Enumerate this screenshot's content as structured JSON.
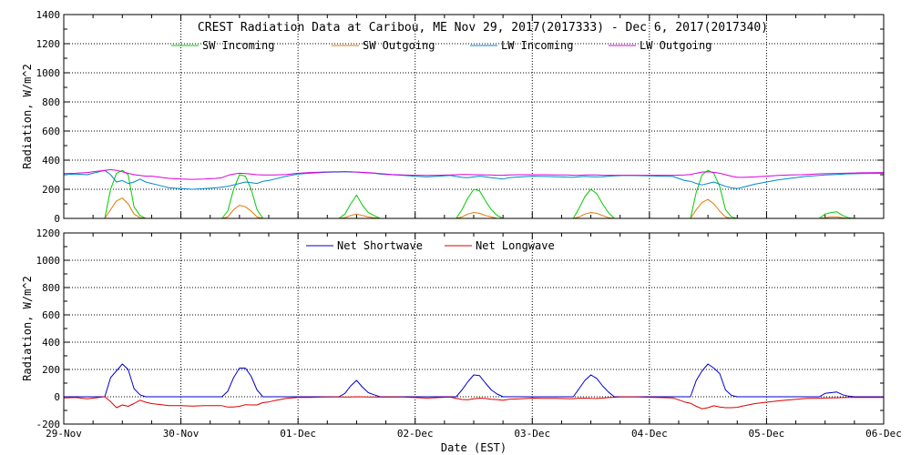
{
  "chart_data": [
    {
      "type": "line",
      "title": "CREST Radiation Data at Caribou, ME   Nov 29, 2017(2017333) - Dec  6, 2017(2017340)",
      "xlabel": "",
      "ylabel": "Radiation, W/m^2",
      "xlim": [
        "2017-11-29",
        "2017-12-06"
      ],
      "ylim": [
        0,
        1400
      ],
      "yticks": [
        0,
        200,
        400,
        600,
        800,
        1000,
        1200,
        1400
      ],
      "xtick_labels": [],
      "grid": true,
      "legend_position": "top",
      "x": [
        0.0,
        0.1,
        0.2,
        0.25,
        0.3,
        0.35,
        0.4,
        0.45,
        0.5,
        0.55,
        0.6,
        0.65,
        0.7,
        0.75,
        0.8,
        0.85,
        0.9,
        1.0,
        1.1,
        1.2,
        1.3,
        1.35,
        1.4,
        1.45,
        1.5,
        1.55,
        1.6,
        1.65,
        1.7,
        1.75,
        1.8,
        1.9,
        2.0,
        2.1,
        2.2,
        2.3,
        2.35,
        2.4,
        2.45,
        2.5,
        2.55,
        2.6,
        2.65,
        2.7,
        2.75,
        2.8,
        2.9,
        3.0,
        3.1,
        3.2,
        3.3,
        3.35,
        3.4,
        3.45,
        3.5,
        3.55,
        3.6,
        3.65,
        3.7,
        3.75,
        3.8,
        3.9,
        4.0,
        4.1,
        4.2,
        4.3,
        4.35,
        4.4,
        4.45,
        4.5,
        4.55,
        4.6,
        4.65,
        4.7,
        4.75,
        4.8,
        4.9,
        5.0,
        5.1,
        5.2,
        5.3,
        5.35,
        5.4,
        5.45,
        5.5,
        5.55,
        5.6,
        5.65,
        5.7,
        5.75,
        5.8,
        5.9,
        6.0,
        6.1,
        6.2,
        6.3,
        6.35,
        6.4,
        6.45,
        6.5,
        6.55,
        6.6,
        6.65,
        6.7,
        6.75,
        6.8,
        6.9,
        7.0
      ],
      "series": [
        {
          "name": "SW Incoming",
          "color": "#00cc00",
          "values": [
            0,
            0,
            0,
            0,
            0,
            0,
            200,
            310,
            330,
            300,
            80,
            20,
            0,
            0,
            0,
            0,
            0,
            0,
            0,
            0,
            0,
            0,
            50,
            200,
            300,
            290,
            200,
            60,
            0,
            0,
            0,
            0,
            0,
            0,
            0,
            0,
            0,
            30,
            100,
            160,
            90,
            40,
            20,
            0,
            0,
            0,
            0,
            0,
            0,
            0,
            0,
            0,
            60,
            140,
            200,
            190,
            120,
            60,
            20,
            0,
            0,
            0,
            0,
            0,
            0,
            0,
            0,
            70,
            150,
            200,
            170,
            100,
            40,
            0,
            0,
            0,
            0,
            0,
            0,
            0,
            0,
            0,
            180,
            300,
            330,
            310,
            220,
            60,
            10,
            0,
            0,
            0,
            0,
            0,
            0,
            0,
            0,
            0,
            0,
            30,
            40,
            45,
            20,
            5,
            0,
            0,
            0,
            0
          ]
        },
        {
          "name": "SW Outgoing",
          "color": "#e07800",
          "values": [
            0,
            0,
            0,
            0,
            0,
            0,
            60,
            120,
            140,
            100,
            30,
            5,
            0,
            0,
            0,
            0,
            0,
            0,
            0,
            0,
            0,
            0,
            10,
            60,
            90,
            80,
            50,
            10,
            0,
            0,
            0,
            0,
            0,
            0,
            0,
            0,
            0,
            5,
            20,
            30,
            20,
            10,
            5,
            0,
            0,
            0,
            0,
            0,
            0,
            0,
            0,
            0,
            10,
            30,
            40,
            35,
            20,
            10,
            0,
            0,
            0,
            0,
            0,
            0,
            0,
            0,
            0,
            10,
            30,
            40,
            35,
            20,
            5,
            0,
            0,
            0,
            0,
            0,
            0,
            0,
            0,
            0,
            60,
            110,
            130,
            100,
            50,
            10,
            0,
            0,
            0,
            0,
            0,
            0,
            0,
            0,
            0,
            0,
            0,
            5,
            10,
            10,
            5,
            0,
            0,
            0,
            0,
            0
          ]
        },
        {
          "name": "LW Incoming",
          "color": "#0088cc",
          "values": [
            300,
            305,
            300,
            310,
            320,
            330,
            300,
            250,
            260,
            240,
            250,
            270,
            250,
            240,
            230,
            220,
            210,
            205,
            200,
            205,
            210,
            215,
            220,
            230,
            240,
            250,
            245,
            240,
            255,
            260,
            270,
            290,
            305,
            310,
            315,
            318,
            318,
            320,
            318,
            318,
            315,
            312,
            310,
            305,
            302,
            300,
            295,
            290,
            285,
            290,
            295,
            288,
            282,
            280,
            285,
            290,
            285,
            280,
            275,
            270,
            280,
            285,
            290,
            288,
            286,
            284,
            282,
            286,
            288,
            286,
            285,
            286,
            290,
            292,
            294,
            295,
            294,
            292,
            290,
            288,
            260,
            255,
            240,
            230,
            240,
            250,
            235,
            220,
            210,
            205,
            215,
            235,
            250,
            265,
            275,
            285,
            290,
            292,
            295,
            298,
            300,
            302,
            304,
            306,
            307,
            308,
            309,
            310
          ]
        },
        {
          "name": "LW Outgoing",
          "color": "#dd00dd",
          "values": [
            308,
            310,
            315,
            320,
            325,
            330,
            335,
            330,
            320,
            310,
            300,
            295,
            290,
            290,
            285,
            280,
            275,
            270,
            268,
            270,
            275,
            280,
            295,
            305,
            310,
            308,
            305,
            300,
            298,
            298,
            298,
            302,
            310,
            315,
            318,
            320,
            320,
            322,
            320,
            318,
            316,
            314,
            312,
            308,
            305,
            302,
            298,
            296,
            295,
            296,
            298,
            300,
            302,
            302,
            300,
            300,
            298,
            298,
            296,
            296,
            298,
            300,
            300,
            300,
            298,
            298,
            296,
            296,
            298,
            298,
            298,
            296,
            296,
            296,
            296,
            296,
            296,
            296,
            296,
            296,
            298,
            302,
            310,
            318,
            320,
            316,
            310,
            300,
            290,
            282,
            282,
            285,
            290,
            295,
            298,
            300,
            302,
            304,
            306,
            307,
            308,
            309,
            310,
            311,
            312,
            313,
            314,
            315
          ]
        }
      ]
    },
    {
      "type": "line",
      "title": "",
      "xlabel": "Date (EST)",
      "ylabel": "Radiation, W/m^2",
      "xlim": [
        "2017-11-29",
        "2017-12-06"
      ],
      "ylim": [
        -200,
        1200
      ],
      "yticks": [
        -200,
        0,
        200,
        400,
        600,
        800,
        1000,
        1200
      ],
      "xtick_labels": [
        "29-Nov",
        "30-Nov",
        "01-Dec",
        "02-Dec",
        "03-Dec",
        "04-Dec",
        "05-Dec",
        "06-Dec"
      ],
      "grid": true,
      "legend_position": "top",
      "x": [
        0.0,
        0.1,
        0.2,
        0.25,
        0.3,
        0.35,
        0.4,
        0.45,
        0.5,
        0.55,
        0.6,
        0.65,
        0.7,
        0.75,
        0.8,
        0.85,
        0.9,
        1.0,
        1.1,
        1.2,
        1.3,
        1.35,
        1.4,
        1.45,
        1.5,
        1.55,
        1.6,
        1.65,
        1.7,
        1.75,
        1.8,
        1.9,
        2.0,
        2.1,
        2.2,
        2.3,
        2.35,
        2.4,
        2.45,
        2.5,
        2.55,
        2.6,
        2.65,
        2.7,
        2.75,
        2.8,
        2.9,
        3.0,
        3.1,
        3.2,
        3.3,
        3.35,
        3.4,
        3.45,
        3.5,
        3.55,
        3.6,
        3.65,
        3.7,
        3.75,
        3.8,
        3.9,
        4.0,
        4.1,
        4.2,
        4.3,
        4.35,
        4.4,
        4.45,
        4.5,
        4.55,
        4.6,
        4.65,
        4.7,
        4.75,
        4.8,
        4.9,
        5.0,
        5.1,
        5.2,
        5.3,
        5.35,
        5.4,
        5.45,
        5.5,
        5.55,
        5.6,
        5.65,
        5.7,
        5.75,
        5.8,
        5.9,
        6.0,
        6.1,
        6.2,
        6.3,
        6.35,
        6.4,
        6.45,
        6.5,
        6.55,
        6.6,
        6.65,
        6.7,
        6.75,
        6.8,
        6.9,
        7.0
      ],
      "series": [
        {
          "name": "Net Shortwave",
          "color": "#0000cc",
          "values": [
            0,
            0,
            0,
            0,
            0,
            0,
            140,
            190,
            240,
            200,
            60,
            15,
            0,
            0,
            0,
            0,
            0,
            0,
            0,
            0,
            0,
            0,
            40,
            140,
            210,
            210,
            150,
            50,
            0,
            0,
            0,
            0,
            0,
            0,
            0,
            0,
            0,
            25,
            80,
            120,
            70,
            30,
            15,
            0,
            0,
            0,
            0,
            0,
            0,
            0,
            0,
            0,
            50,
            110,
            160,
            155,
            100,
            50,
            20,
            0,
            0,
            0,
            0,
            0,
            0,
            0,
            0,
            60,
            120,
            160,
            135,
            80,
            35,
            0,
            0,
            0,
            0,
            0,
            0,
            0,
            0,
            0,
            120,
            190,
            240,
            210,
            170,
            50,
            10,
            0,
            0,
            0,
            0,
            0,
            0,
            0,
            0,
            0,
            0,
            25,
            30,
            35,
            15,
            5,
            0,
            0,
            0,
            0
          ]
        },
        {
          "name": "Net Longwave",
          "color": "#dd0000",
          "values": [
            -8,
            -5,
            -15,
            -10,
            -5,
            0,
            -35,
            -80,
            -60,
            -70,
            -50,
            -25,
            -40,
            -50,
            -55,
            -60,
            -65,
            -65,
            -68,
            -65,
            -65,
            -65,
            -75,
            -75,
            -70,
            -58,
            -60,
            -60,
            -43,
            -38,
            -28,
            -12,
            -5,
            -5,
            -3,
            -2,
            -2,
            -2,
            -2,
            0,
            -1,
            -2,
            -2,
            -3,
            -3,
            -2,
            -3,
            -6,
            -10,
            -6,
            -3,
            -12,
            -20,
            -22,
            -15,
            -10,
            -13,
            -18,
            -21,
            -26,
            -18,
            -15,
            -10,
            -12,
            -12,
            -14,
            -14,
            -10,
            -10,
            -12,
            -13,
            -10,
            -6,
            -4,
            -2,
            -1,
            -2,
            -4,
            -6,
            -8,
            -38,
            -47,
            -70,
            -88,
            -80,
            -66,
            -75,
            -80,
            -80,
            -77,
            -67,
            -50,
            -40,
            -30,
            -23,
            -15,
            -12,
            -12,
            -11,
            -9,
            -8,
            -7,
            -6,
            -5,
            -5,
            -5,
            -5,
            -5
          ]
        }
      ]
    }
  ]
}
